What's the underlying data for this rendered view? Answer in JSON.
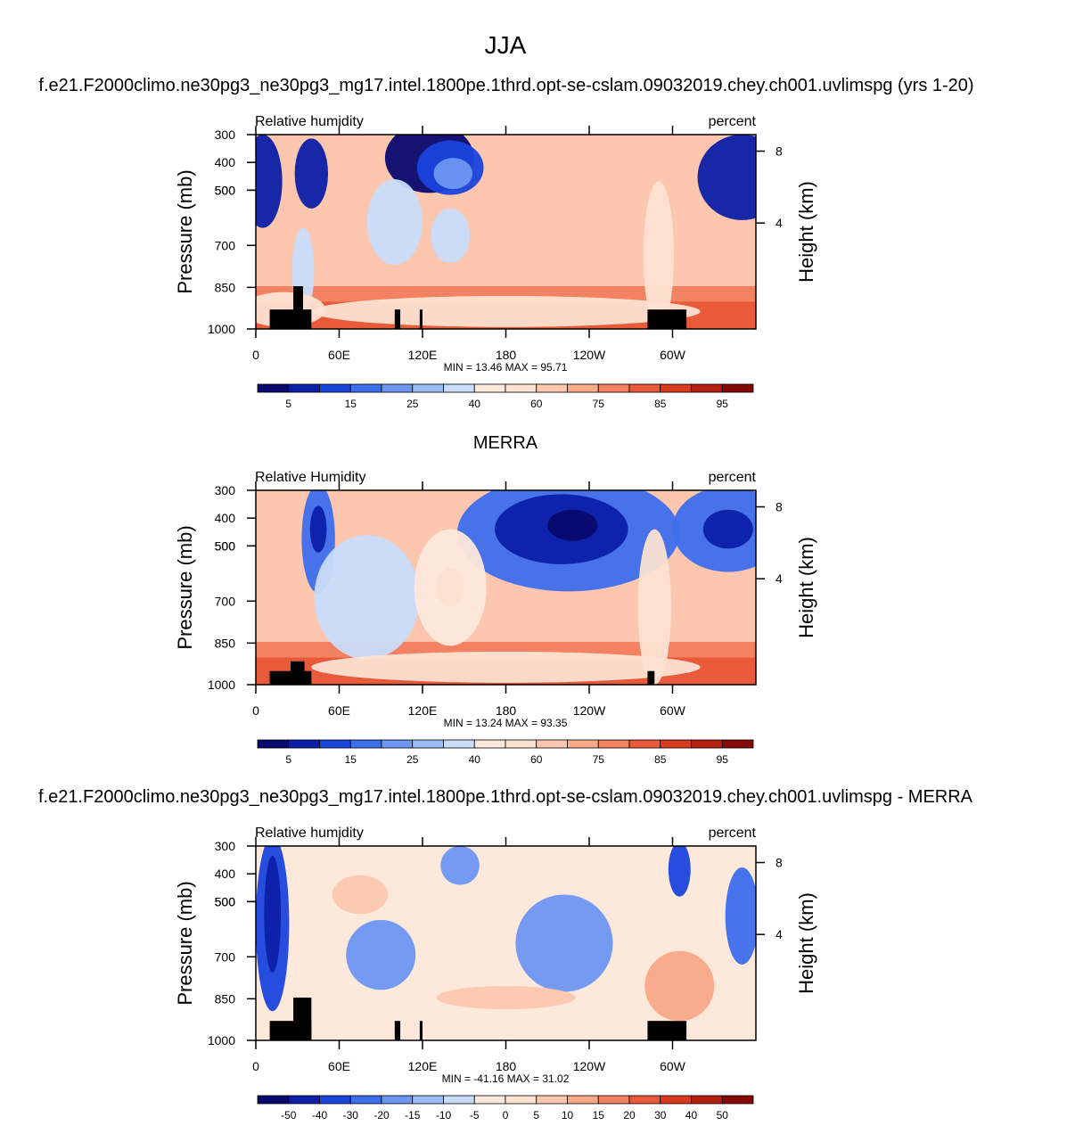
{
  "page": {
    "title": "JJA",
    "run_name": "f.e21.F2000climo.ne30pg3_ne30pg3_mg17.intel.1800pe.1thrd.opt-se-cslam.09032019.chey.ch001.uvlimspg (yrs 1-20)",
    "mid_title": "MERRA",
    "diff_title": "f.e21.F2000climo.ne30pg3_ne30pg3_mg17.intel.1800pe.1thrd.opt-se-cslam.09032019.chey.ch001.uvlimspg - MERRA"
  },
  "colors": {
    "blues": [
      "#08086e",
      "#0c1fa8",
      "#1a45dc",
      "#3d6eec",
      "#6d96f2",
      "#9cbcf6",
      "#c9dcfa"
    ],
    "whites": [
      "#fde8dc",
      "#fde2d2"
    ],
    "reds": [
      "#fcc7ae",
      "#f9a888",
      "#f28262",
      "#e85a3a",
      "#d93a1e",
      "#b51f10",
      "#850808"
    ],
    "terrain": "#000000"
  },
  "chart_data": [
    {
      "type": "contour",
      "left_label": "Relative humidity",
      "right_label": "percent",
      "ylabel": "Pressure (mb)",
      "ylabel_right": "Height (km)",
      "xlabel": "",
      "x_ticks": [
        "0",
        "60E",
        "120E",
        "180",
        "120W",
        "60W"
      ],
      "x_range": [
        0,
        360
      ],
      "y_ticks": [
        "300",
        "400",
        "500",
        "500",
        "700",
        "850",
        "1000"
      ],
      "y_right_ticks": [
        "8",
        "4"
      ],
      "stats": "MIN =  13.46  MAX =  95.71",
      "colorbar_levels": [
        5,
        10,
        15,
        20,
        25,
        30,
        40,
        50,
        60,
        70,
        75,
        80,
        85,
        90,
        95
      ],
      "colorbar_labels": [
        "5",
        "15",
        "25",
        "40",
        "60",
        "75",
        "85",
        "95"
      ],
      "blobs": [
        {
          "lon": 125,
          "lev": 0.12,
          "rlon": 32,
          "rlev": 0.18,
          "cls": 0
        },
        {
          "lon": 140,
          "lev": 0.17,
          "rlon": 24,
          "rlev": 0.14,
          "cls": 2
        },
        {
          "lon": 142,
          "lev": 0.2,
          "rlon": 14,
          "rlev": 0.08,
          "cls": 4
        },
        {
          "lon": 5,
          "lev": 0.24,
          "rlon": 14,
          "rlev": 0.24,
          "cls": 1
        },
        {
          "lon": 350,
          "lev": 0.22,
          "rlon": 32,
          "rlev": 0.22,
          "cls": 1
        },
        {
          "lon": 40,
          "lev": 0.2,
          "rlon": 12,
          "rlev": 0.18,
          "cls": 1
        },
        {
          "lon": 100,
          "lev": 0.45,
          "rlon": 20,
          "rlev": 0.22,
          "cls": 6
        },
        {
          "lon": 140,
          "lev": 0.52,
          "rlon": 14,
          "rlev": 0.14,
          "cls": 6
        },
        {
          "lon": 34,
          "lev": 0.7,
          "rlon": 8,
          "rlev": 0.22,
          "cls": 6
        },
        {
          "lon": 290,
          "lev": 0.62,
          "rlon": 11,
          "rlev": 0.38,
          "cls": 8
        },
        {
          "lon": 180,
          "lev": 0.91,
          "rlon": 140,
          "rlev": 0.08,
          "cls": 8
        },
        {
          "lon": 20,
          "lev": 0.9,
          "rlon": 30,
          "rlev": 0.09,
          "cls": 8
        }
      ],
      "terrain": [
        {
          "lon0": 10,
          "lon1": 40,
          "lev": 0.9
        },
        {
          "lon0": 27,
          "lon1": 34,
          "lev": 0.78
        },
        {
          "lon0": 100,
          "lon1": 104,
          "lev": 0.9
        },
        {
          "lon0": 118,
          "lon1": 120,
          "lev": 0.9
        },
        {
          "lon0": 282,
          "lon1": 310,
          "lev": 0.9
        }
      ]
    },
    {
      "type": "contour",
      "left_label": "Relative Humidity",
      "right_label": "percent",
      "ylabel": "Pressure (mb)",
      "ylabel_right": "Height (km)",
      "xlabel": "",
      "x_ticks": [
        "0",
        "60E",
        "120E",
        "180",
        "120W",
        "60W"
      ],
      "x_range": [
        0,
        360
      ],
      "y_ticks": [
        "300",
        "400",
        "500",
        "500",
        "700",
        "850",
        "1000"
      ],
      "y_right_ticks": [
        "8",
        "4"
      ],
      "stats": "MIN =  13.24  MAX =  93.35",
      "colorbar_levels": [
        5,
        10,
        15,
        20,
        25,
        30,
        40,
        50,
        60,
        70,
        75,
        80,
        85,
        90,
        95
      ],
      "colorbar_labels": [
        "5",
        "15",
        "25",
        "40",
        "60",
        "75",
        "85",
        "95"
      ],
      "blobs": [
        {
          "lon": 225,
          "lev": 0.22,
          "rlon": 80,
          "rlev": 0.3,
          "cls": 3
        },
        {
          "lon": 220,
          "lev": 0.2,
          "rlon": 48,
          "rlev": 0.18,
          "cls": 1
        },
        {
          "lon": 228,
          "lev": 0.18,
          "rlon": 18,
          "rlev": 0.08,
          "cls": 0
        },
        {
          "lon": 340,
          "lev": 0.2,
          "rlon": 40,
          "rlev": 0.22,
          "cls": 3
        },
        {
          "lon": 340,
          "lev": 0.2,
          "rlon": 18,
          "rlev": 0.1,
          "cls": 1
        },
        {
          "lon": 45,
          "lev": 0.25,
          "rlon": 12,
          "rlev": 0.28,
          "cls": 3
        },
        {
          "lon": 45,
          "lev": 0.2,
          "rlon": 6,
          "rlev": 0.12,
          "cls": 1
        },
        {
          "lon": 80,
          "lev": 0.55,
          "rlon": 38,
          "rlev": 0.32,
          "cls": 6
        },
        {
          "lon": 140,
          "lev": 0.5,
          "rlon": 26,
          "rlev": 0.3,
          "cls": 7
        },
        {
          "lon": 140,
          "lev": 0.5,
          "rlon": 10,
          "rlev": 0.1,
          "cls": 8
        },
        {
          "lon": 287,
          "lev": 0.6,
          "rlon": 12,
          "rlev": 0.4,
          "cls": 8
        },
        {
          "lon": 180,
          "lev": 0.91,
          "rlon": 140,
          "rlev": 0.08,
          "cls": 8
        }
      ],
      "terrain": [
        {
          "lon0": 10,
          "lon1": 40,
          "lev": 0.93
        },
        {
          "lon0": 25,
          "lon1": 35,
          "lev": 0.88
        },
        {
          "lon0": 282,
          "lon1": 287,
          "lev": 0.93
        }
      ]
    },
    {
      "type": "contour",
      "left_label": "Relative humidity",
      "right_label": "percent",
      "ylabel": "Pressure (mb)",
      "ylabel_right": "Height (km)",
      "xlabel": "",
      "x_ticks": [
        "0",
        "60E",
        "120E",
        "180",
        "120W",
        "60W"
      ],
      "x_range": [
        0,
        360
      ],
      "y_ticks": [
        "300",
        "400",
        "500",
        "500",
        "700",
        "850",
        "1000"
      ],
      "y_right_ticks": [
        "8",
        "4"
      ],
      "stats": "MIN = -41.16  MAX =  31.02",
      "colorbar_levels": [
        -50,
        -40,
        -30,
        -20,
        -15,
        -10,
        -5,
        0,
        5,
        10,
        15,
        20,
        30,
        40,
        50
      ],
      "colorbar_labels": [
        "-50",
        "-40",
        "-30",
        "-20",
        "-15",
        "-10",
        "-5",
        "0",
        "5",
        "10",
        "15",
        "20",
        "30",
        "40",
        "50"
      ],
      "blobs": [
        {
          "lon": 12,
          "lev": 0.4,
          "rlon": 12,
          "rlev": 0.45,
          "cls": 2
        },
        {
          "lon": 12,
          "lev": 0.35,
          "rlon": 6,
          "rlev": 0.3,
          "cls": 1
        },
        {
          "lon": 222,
          "lev": 0.5,
          "rlon": 35,
          "rlev": 0.25,
          "cls": 4
        },
        {
          "lon": 90,
          "lev": 0.56,
          "rlon": 25,
          "rlev": 0.18,
          "cls": 4
        },
        {
          "lon": 147,
          "lev": 0.1,
          "rlon": 14,
          "rlev": 0.1,
          "cls": 4
        },
        {
          "lon": 305,
          "lev": 0.12,
          "rlon": 8,
          "rlev": 0.14,
          "cls": 2
        },
        {
          "lon": 350,
          "lev": 0.36,
          "rlon": 12,
          "rlev": 0.25,
          "cls": 3
        },
        {
          "lon": 305,
          "lev": 0.72,
          "rlon": 25,
          "rlev": 0.18,
          "cls": 10
        },
        {
          "lon": 180,
          "lev": 0.78,
          "rlon": 50,
          "rlev": 0.06,
          "cls": 9
        },
        {
          "lon": 75,
          "lev": 0.25,
          "rlon": 20,
          "rlev": 0.1,
          "cls": 9
        }
      ],
      "terrain": [
        {
          "lon0": 10,
          "lon1": 40,
          "lev": 0.9
        },
        {
          "lon0": 27,
          "lon1": 40,
          "lev": 0.78
        },
        {
          "lon0": 100,
          "lon1": 104,
          "lev": 0.9
        },
        {
          "lon0": 118,
          "lon1": 120,
          "lev": 0.9
        },
        {
          "lon0": 282,
          "lon1": 310,
          "lev": 0.9
        }
      ]
    }
  ]
}
